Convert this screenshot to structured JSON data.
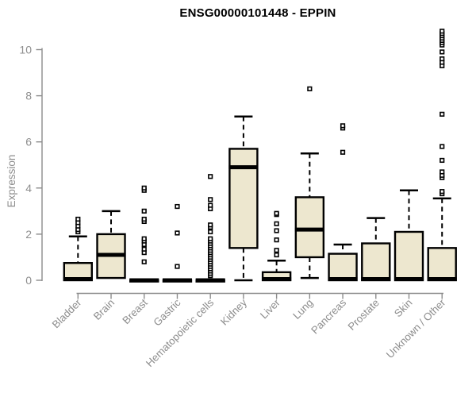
{
  "chart_data": {
    "type": "boxplot",
    "title": "ENSG00000101448 - EPPIN",
    "ylabel": "Expression",
    "xlabel": "",
    "ylim": [
      0,
      10.9
    ],
    "yticks": [
      0,
      2,
      4,
      6,
      8,
      10
    ],
    "grid": false,
    "legend": "none",
    "categories": [
      "Bladder",
      "Brain",
      "Breast",
      "Gastric",
      "Hematopoietic cells",
      "Kidney",
      "Liver",
      "Lung",
      "Pancreas",
      "Prostate",
      "Skin",
      "Unknown / Other"
    ],
    "boxes": [
      {
        "category": "Bladder",
        "whisker_low": 0,
        "q1": 0,
        "median": 0.05,
        "q3": 0.75,
        "whisker_high": 1.9,
        "outliers": [
          2.1,
          2.2,
          2.35,
          2.5,
          2.65
        ]
      },
      {
        "category": "Brain",
        "whisker_low": 0.1,
        "q1": 0.1,
        "median": 1.1,
        "q3": 2.0,
        "whisker_high": 3.0,
        "outliers": []
      },
      {
        "category": "Breast",
        "whisker_low": 0,
        "q1": 0,
        "median": 0,
        "q3": 0,
        "whisker_high": 0,
        "outliers": [
          0.8,
          1.2,
          1.35,
          1.55,
          1.7,
          1.8,
          2.55,
          2.65,
          3.0,
          3.9,
          4.0
        ]
      },
      {
        "category": "Gastric",
        "whisker_low": 0,
        "q1": 0,
        "median": 0,
        "q3": 0,
        "whisker_high": 0,
        "outliers": [
          0.6,
          2.05,
          3.2
        ]
      },
      {
        "category": "Hematopoietic cells",
        "whisker_low": 0,
        "q1": 0,
        "median": 0,
        "q3": 0,
        "whisker_high": 0,
        "outliers": [
          0.2,
          0.3,
          0.4,
          0.5,
          0.6,
          0.7,
          0.8,
          0.9,
          1.0,
          1.1,
          1.2,
          1.3,
          1.4,
          1.5,
          1.6,
          1.7,
          1.8,
          2.1,
          2.3,
          2.4,
          3.1,
          3.25,
          3.5,
          4.5
        ]
      },
      {
        "category": "Kidney",
        "whisker_low": 0,
        "q1": 1.4,
        "median": 4.9,
        "q3": 5.7,
        "whisker_high": 7.1,
        "outliers": []
      },
      {
        "category": "Liver",
        "whisker_low": 0,
        "q1": 0,
        "median": 0.05,
        "q3": 0.35,
        "whisker_high": 0.85,
        "outliers": [
          1.1,
          1.3,
          1.75,
          2.15,
          2.45,
          2.85,
          2.9
        ]
      },
      {
        "category": "Lung",
        "whisker_low": 0.1,
        "q1": 1.0,
        "median": 2.2,
        "q3": 3.6,
        "whisker_high": 5.5,
        "outliers": [
          8.3
        ]
      },
      {
        "category": "Pancreas",
        "whisker_low": 0,
        "q1": 0,
        "median": 0.05,
        "q3": 1.15,
        "whisker_high": 1.55,
        "outliers": [
          5.55,
          6.6,
          6.7
        ]
      },
      {
        "category": "Prostate",
        "whisker_low": 0,
        "q1": 0,
        "median": 0.05,
        "q3": 1.6,
        "whisker_high": 2.7,
        "outliers": []
      },
      {
        "category": "Skin",
        "whisker_low": 0,
        "q1": 0,
        "median": 0.05,
        "q3": 2.1,
        "whisker_high": 3.9,
        "outliers": []
      },
      {
        "category": "Unknown / Other",
        "whisker_low": 0,
        "q1": 0,
        "median": 0.05,
        "q3": 1.4,
        "whisker_high": 3.55,
        "outliers": [
          3.75,
          3.85,
          4.45,
          4.55,
          4.7,
          5.2,
          5.8,
          7.2,
          9.3,
          9.45,
          9.6,
          9.9,
          10.2,
          10.3,
          10.4,
          10.5,
          10.6,
          10.7,
          10.8
        ]
      }
    ],
    "colors": {
      "box_fill": "#EDE7CF",
      "box_border": "#000000",
      "median": "#000000",
      "whisker": "#000000",
      "outlier_fill": "#ffffff",
      "axis": "#8C8C8C",
      "tick_text": "#8E8E8E",
      "title": "#000000",
      "background": "#ffffff"
    }
  }
}
